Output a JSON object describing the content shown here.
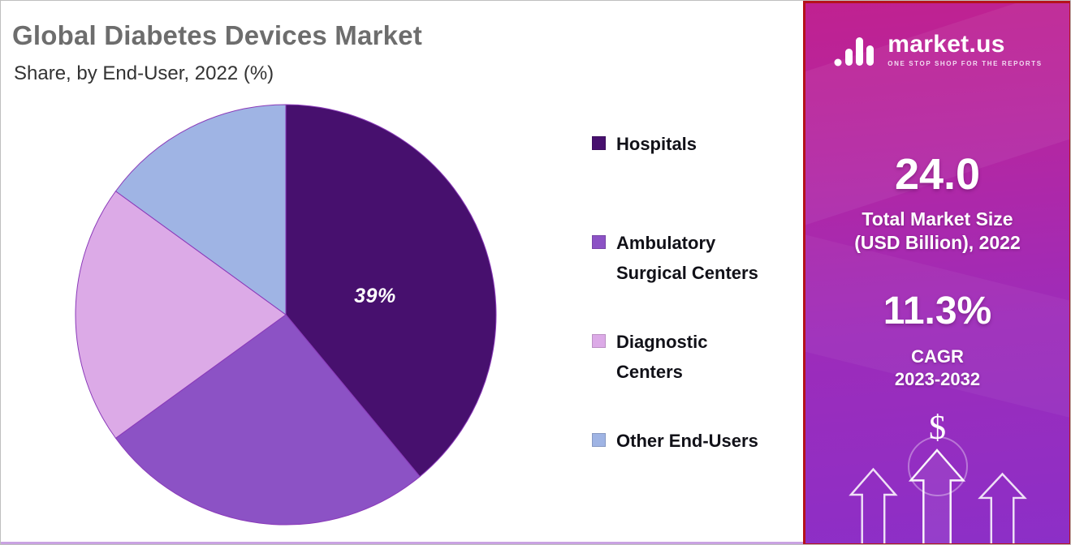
{
  "header": {
    "title": "Global Diabetes Devices Market",
    "subtitle": "Share, by End-User, 2022 (%)"
  },
  "chart_data": {
    "type": "pie",
    "title": "Global Diabetes Devices Market",
    "subtitle": "Share, by End-User, 2022 (%)",
    "unit": "%",
    "direction": "clockwise",
    "start_angle_deg": 0,
    "legend_position": "right",
    "stroke_color": "#8a3ab9",
    "slices": [
      {
        "label": "Hospitals",
        "value": 39,
        "color": "#47106e",
        "data_label": "39%"
      },
      {
        "label": "Ambulatory Surgical Centers",
        "value": 26,
        "color": "#8c52c5",
        "data_label": ""
      },
      {
        "label": "Diagnostic Centers",
        "value": 20,
        "color": "#dcaae7",
        "data_label": ""
      },
      {
        "label": "Other End-Users",
        "value": 15,
        "color": "#9fb4e4",
        "data_label": ""
      }
    ]
  },
  "sidebar": {
    "brand": "market.us",
    "tagline": "ONE STOP SHOP FOR THE REPORTS",
    "stats": [
      {
        "value": "24.0",
        "label_line1": "Total Market Size",
        "label_line2": "(USD Billion), 2022"
      },
      {
        "value": "11.3%",
        "label_line1": "CAGR",
        "label_line2": "2023-2032"
      }
    ],
    "dollar_symbol": "$",
    "colors": {
      "gradient_top": "#c02190",
      "gradient_bottom": "#8c2fc7",
      "border": "#b5121b"
    }
  }
}
